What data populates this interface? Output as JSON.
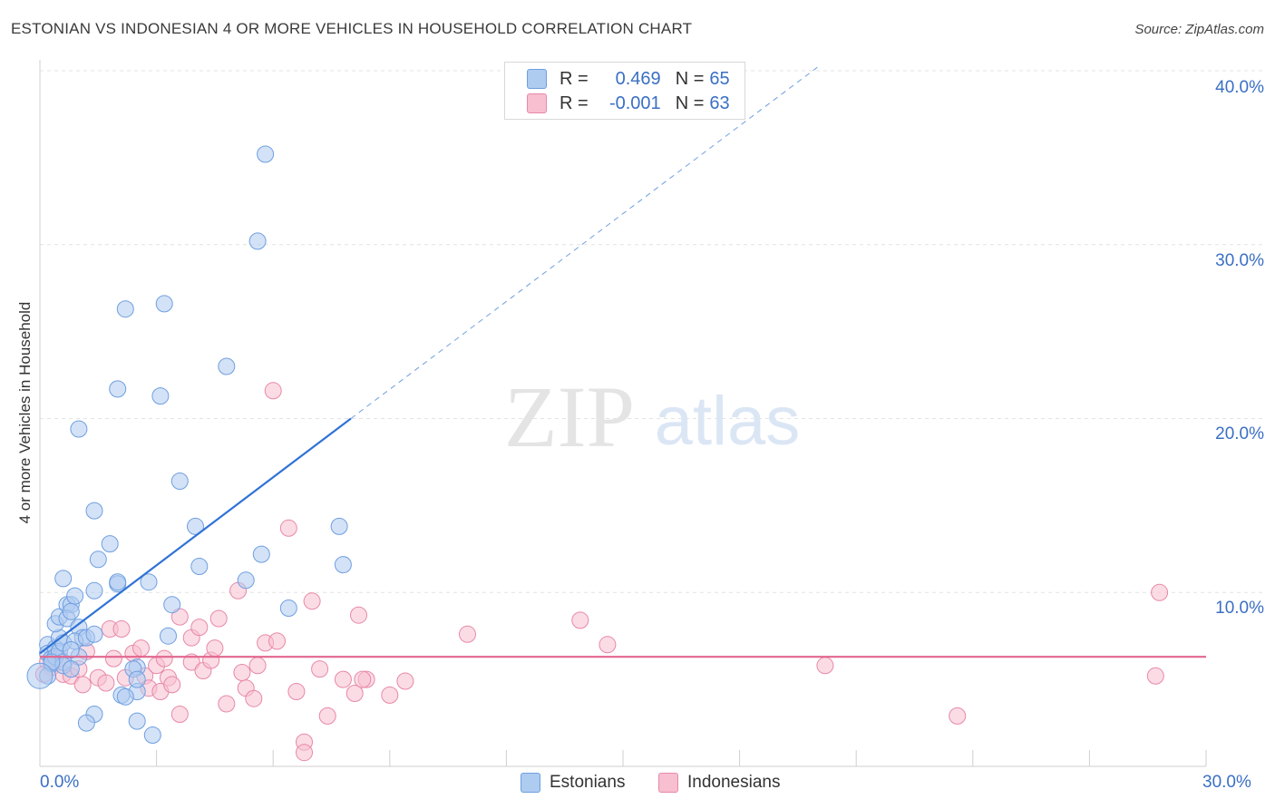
{
  "title": "ESTONIAN VS INDONESIAN 4 OR MORE VEHICLES IN HOUSEHOLD CORRELATION CHART",
  "source": "Source: ZipAtlas.com",
  "watermark": {
    "zip": "ZIP",
    "atlas": "atlas"
  },
  "legend": {
    "estonians": {
      "r_label": "R =",
      "r_value": "0.469",
      "n_label": "N =",
      "n_value": "65",
      "color": "#aecbf0",
      "border": "#6f9fe0"
    },
    "indonesians": {
      "r_label": "R =",
      "r_value": "-0.001",
      "n_label": "N =",
      "n_value": "63",
      "color": "#f7bfd0",
      "border": "#e888a8"
    }
  },
  "bottom_legend": {
    "estonians": "Estonians",
    "indonesians": "Indonesians"
  },
  "axis": {
    "y_ticks": [
      "10.0%",
      "20.0%",
      "30.0%",
      "40.0%"
    ],
    "x_min_label": "0.0%",
    "x_max_label": "30.0%"
  },
  "chart_data": {
    "type": "scatter",
    "title": "ESTONIAN VS INDONESIAN 4 OR MORE VEHICLES IN HOUSEHOLD CORRELATION CHART",
    "xlabel": "",
    "ylabel": "4 or more Vehicles in Household",
    "xlim": [
      0,
      30
    ],
    "ylim": [
      0,
      40
    ],
    "series": [
      {
        "name": "Estonians",
        "color": "#6f9fe0",
        "fill": "#aecbf0",
        "trend": {
          "x0": 0.0,
          "y0": 6.5,
          "x1": 8.0,
          "y1": 20.0,
          "dash_to_x": 20.0,
          "dash_to_y": 40.2
        },
        "points": [
          [
            0.2,
            7.0
          ],
          [
            0.2,
            6.5
          ],
          [
            0.3,
            6.2
          ],
          [
            0.3,
            5.9
          ],
          [
            0.4,
            6.8
          ],
          [
            0.4,
            6.3
          ],
          [
            0.5,
            7.4
          ],
          [
            0.5,
            6.6
          ],
          [
            0.6,
            7.1
          ],
          [
            0.6,
            6.0
          ],
          [
            0.4,
            8.2
          ],
          [
            0.5,
            8.6
          ],
          [
            0.7,
            9.3
          ],
          [
            0.8,
            9.3
          ],
          [
            0.7,
            8.5
          ],
          [
            0.8,
            8.9
          ],
          [
            0.9,
            9.8
          ],
          [
            1.0,
            8.0
          ],
          [
            1.1,
            7.4
          ],
          [
            1.0,
            6.3
          ],
          [
            0.6,
            10.8
          ],
          [
            0.6,
            5.8
          ],
          [
            0.8,
            5.6
          ],
          [
            0.9,
            7.2
          ],
          [
            1.2,
            7.4
          ],
          [
            1.4,
            7.6
          ],
          [
            1.4,
            10.1
          ],
          [
            1.5,
            11.9
          ],
          [
            1.8,
            12.8
          ],
          [
            1.4,
            14.7
          ],
          [
            1.0,
            19.4
          ],
          [
            2.0,
            10.5
          ],
          [
            2.0,
            10.6
          ],
          [
            2.2,
            26.3
          ],
          [
            2.0,
            21.7
          ],
          [
            3.1,
            21.3
          ],
          [
            3.2,
            26.6
          ],
          [
            3.6,
            16.4
          ],
          [
            3.4,
            9.3
          ],
          [
            4.1,
            11.5
          ],
          [
            4.0,
            13.8
          ],
          [
            4.8,
            23.0
          ],
          [
            5.3,
            10.7
          ],
          [
            5.6,
            30.2
          ],
          [
            5.7,
            12.2
          ],
          [
            5.8,
            35.2
          ],
          [
            6.4,
            9.1
          ],
          [
            7.7,
            13.8
          ],
          [
            7.8,
            11.6
          ],
          [
            3.3,
            7.5
          ],
          [
            2.8,
            10.6
          ],
          [
            2.5,
            4.3
          ],
          [
            2.5,
            5.7
          ],
          [
            2.1,
            4.1
          ],
          [
            2.2,
            4.0
          ],
          [
            2.5,
            2.6
          ],
          [
            2.9,
            1.8
          ],
          [
            1.4,
            3.0
          ],
          [
            1.2,
            2.5
          ],
          [
            2.4,
            5.6
          ],
          [
            2.5,
            5.0
          ],
          [
            0.2,
            5.2
          ],
          [
            0.3,
            6.0
          ],
          [
            0.0,
            5.2
          ],
          [
            0.8,
            6.7
          ]
        ]
      },
      {
        "name": "Indonesians",
        "color": "#e888a8",
        "fill": "#f7bfd0",
        "trend": {
          "x0": 0.0,
          "y0": 6.3,
          "x1": 30.0,
          "y1": 6.3
        },
        "points": [
          [
            0.2,
            6.0
          ],
          [
            0.3,
            5.7
          ],
          [
            0.5,
            6.2
          ],
          [
            0.6,
            5.3
          ],
          [
            0.8,
            5.2
          ],
          [
            1.0,
            5.6
          ],
          [
            1.2,
            6.6
          ],
          [
            1.5,
            5.1
          ],
          [
            1.7,
            4.8
          ],
          [
            1.9,
            6.2
          ],
          [
            1.8,
            7.9
          ],
          [
            2.1,
            7.9
          ],
          [
            2.4,
            6.5
          ],
          [
            2.6,
            6.8
          ],
          [
            2.7,
            5.2
          ],
          [
            2.8,
            4.5
          ],
          [
            3.0,
            5.8
          ],
          [
            3.1,
            4.3
          ],
          [
            3.2,
            6.2
          ],
          [
            3.3,
            5.1
          ],
          [
            3.4,
            4.7
          ],
          [
            3.6,
            8.6
          ],
          [
            3.6,
            3.0
          ],
          [
            3.9,
            7.4
          ],
          [
            3.9,
            6.0
          ],
          [
            4.1,
            8.0
          ],
          [
            4.2,
            5.5
          ],
          [
            4.4,
            6.1
          ],
          [
            4.6,
            8.5
          ],
          [
            4.8,
            3.6
          ],
          [
            5.1,
            10.1
          ],
          [
            5.2,
            5.4
          ],
          [
            5.3,
            4.5
          ],
          [
            5.5,
            3.9
          ],
          [
            5.6,
            5.8
          ],
          [
            5.8,
            7.1
          ],
          [
            6.1,
            7.2
          ],
          [
            6.4,
            13.7
          ],
          [
            6.6,
            4.3
          ],
          [
            6.8,
            1.4
          ],
          [
            6.8,
            0.8
          ],
          [
            7.0,
            9.5
          ],
          [
            7.2,
            5.6
          ],
          [
            7.4,
            2.9
          ],
          [
            7.8,
            5.0
          ],
          [
            8.1,
            4.2
          ],
          [
            8.2,
            8.7
          ],
          [
            8.4,
            5.0
          ],
          [
            9.0,
            4.1
          ],
          [
            9.4,
            4.9
          ],
          [
            6.0,
            21.6
          ],
          [
            11.0,
            7.6
          ],
          [
            13.9,
            8.4
          ],
          [
            14.6,
            7.0
          ],
          [
            20.2,
            5.8
          ],
          [
            23.6,
            2.9
          ],
          [
            28.7,
            5.2
          ],
          [
            28.8,
            10.0
          ],
          [
            1.1,
            4.7
          ],
          [
            2.2,
            5.1
          ],
          [
            4.5,
            6.8
          ],
          [
            0.1,
            5.3
          ],
          [
            8.3,
            5.0
          ]
        ]
      }
    ]
  }
}
